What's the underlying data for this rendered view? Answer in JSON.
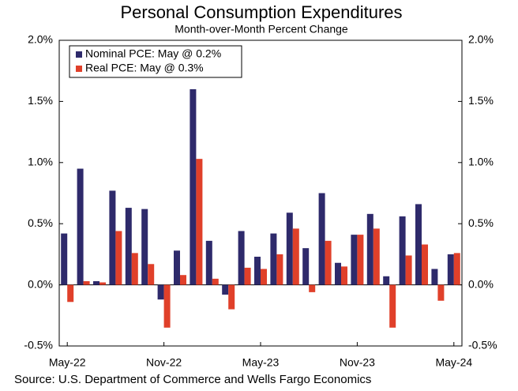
{
  "chart_data": {
    "type": "bar",
    "title": "Personal Consumption Expenditures",
    "subtitle": "Month-over-Month Percent Change",
    "source": "Source: U.S. Department of Commerce and Wells Fargo Economics",
    "categories": [
      "May-22",
      null,
      null,
      null,
      null,
      null,
      "Nov-22",
      null,
      null,
      null,
      null,
      null,
      "May-23",
      null,
      null,
      null,
      null,
      null,
      "Nov-23",
      null,
      null,
      null,
      null,
      null,
      "May-24"
    ],
    "series": [
      {
        "name": "Nominal PCE: May @ 0.2%",
        "color": "#2e2a6b",
        "values": [
          0.42,
          0.95,
          0.03,
          0.77,
          0.63,
          0.62,
          -0.12,
          0.28,
          1.6,
          0.36,
          -0.08,
          0.44,
          0.23,
          0.42,
          0.59,
          0.3,
          0.75,
          0.18,
          0.41,
          0.58,
          0.07,
          0.56,
          0.66,
          0.13,
          0.25
        ]
      },
      {
        "name": "Real PCE: May @ 0.3%",
        "color": "#e0402a",
        "values": [
          -0.14,
          0.03,
          0.02,
          0.44,
          0.26,
          0.17,
          -0.35,
          0.08,
          1.03,
          0.05,
          -0.2,
          0.14,
          0.13,
          0.25,
          0.46,
          -0.06,
          0.36,
          0.15,
          0.41,
          0.46,
          -0.35,
          0.24,
          0.33,
          -0.13,
          0.26
        ]
      }
    ],
    "ylim": [
      -0.5,
      2.0
    ],
    "yticks": [
      {
        "value": -0.5,
        "label": "-0.5%"
      },
      {
        "value": 0,
        "label": "0.0%"
      },
      {
        "value": 0.5,
        "label": "0.5%"
      },
      {
        "value": 1.0,
        "label": "1.0%"
      },
      {
        "value": 1.5,
        "label": "1.5%"
      },
      {
        "value": 2.0,
        "label": "2.0%"
      }
    ],
    "legend": "upper-left"
  }
}
